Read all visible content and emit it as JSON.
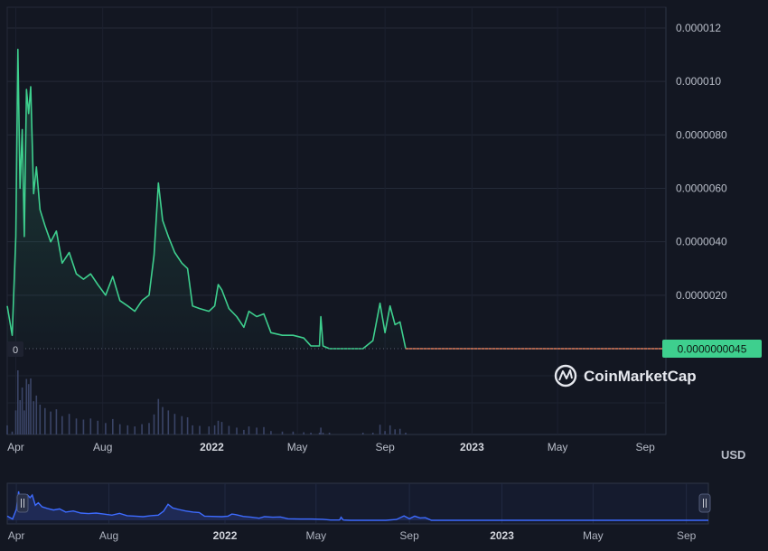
{
  "chart_data": {
    "type": "line",
    "title": "",
    "xlabel": "",
    "ylabel": "",
    "unit": "USD",
    "y_ticks": [
      "0.000012",
      "0.000010",
      "0.0000080",
      "0.0000060",
      "0.0000040",
      "0.0000020"
    ],
    "y_tick_values": [
      1.2e-05,
      1e-05,
      8e-06,
      6e-06,
      4e-06,
      2e-06
    ],
    "zero_label": "0",
    "ylim": [
      0,
      1.18e-05
    ],
    "x_ticks": [
      {
        "label": "Apr",
        "date": "2021-04",
        "bold": false
      },
      {
        "label": "Aug",
        "date": "2021-08",
        "bold": false
      },
      {
        "label": "2022",
        "date": "2022-01",
        "bold": true
      },
      {
        "label": "May",
        "date": "2022-05",
        "bold": false
      },
      {
        "label": "Sep",
        "date": "2022-09",
        "bold": false
      },
      {
        "label": "2023",
        "date": "2023-01",
        "bold": true
      },
      {
        "label": "May",
        "date": "2023-05",
        "bold": false
      },
      {
        "label": "Sep",
        "date": "2023-09",
        "bold": false
      }
    ],
    "nav_ticks": [
      {
        "label": "Apr",
        "bold": false
      },
      {
        "label": "Aug",
        "bold": false
      },
      {
        "label": "2022",
        "bold": true
      },
      {
        "label": "May",
        "bold": false
      },
      {
        "label": "Sep",
        "bold": false
      },
      {
        "label": "2023",
        "bold": true
      },
      {
        "label": "May",
        "bold": false
      },
      {
        "label": "Sep",
        "bold": false
      }
    ],
    "current_price": "0.0000000045",
    "grid": true,
    "colors": {
      "line": "#3ecf8e",
      "flat": "#e07c5a",
      "volume": "#3a4466",
      "nav_line": "#3d6bff",
      "nav_fill": "#1f2a55",
      "background": "#131722",
      "price_badge": "#3ecf8e"
    },
    "series": [
      {
        "values": [
          [
            "2021-03-20",
            1.6e-06
          ],
          [
            "2021-03-27",
            5e-07
          ],
          [
            "2021-04-01",
            4.2e-06
          ],
          [
            "2021-04-04",
            1.12e-05
          ],
          [
            "2021-04-07",
            6e-06
          ],
          [
            "2021-04-10",
            8.2e-06
          ],
          [
            "2021-04-13",
            4.2e-06
          ],
          [
            "2021-04-16",
            9.7e-06
          ],
          [
            "2021-04-19",
            8.8e-06
          ],
          [
            "2021-04-22",
            9.8e-06
          ],
          [
            "2021-04-26",
            5.8e-06
          ],
          [
            "2021-04-30",
            6.8e-06
          ],
          [
            "2021-05-05",
            5.2e-06
          ],
          [
            "2021-05-12",
            4.6e-06
          ],
          [
            "2021-05-20",
            4e-06
          ],
          [
            "2021-05-28",
            4.4e-06
          ],
          [
            "2021-06-05",
            3.2e-06
          ],
          [
            "2021-06-15",
            3.6e-06
          ],
          [
            "2021-06-25",
            2.8e-06
          ],
          [
            "2021-07-05",
            2.6e-06
          ],
          [
            "2021-07-15",
            2.8e-06
          ],
          [
            "2021-07-25",
            2.4e-06
          ],
          [
            "2021-08-05",
            2e-06
          ],
          [
            "2021-08-15",
            2.7e-06
          ],
          [
            "2021-08-25",
            1.8e-06
          ],
          [
            "2021-09-05",
            1.6e-06
          ],
          [
            "2021-09-15",
            1.4e-06
          ],
          [
            "2021-09-25",
            1.8e-06
          ],
          [
            "2021-10-05",
            2e-06
          ],
          [
            "2021-10-12",
            3.5e-06
          ],
          [
            "2021-10-18",
            6.2e-06
          ],
          [
            "2021-10-24",
            4.8e-06
          ],
          [
            "2021-11-01",
            4.2e-06
          ],
          [
            "2021-11-10",
            3.6e-06
          ],
          [
            "2021-11-20",
            3.2e-06
          ],
          [
            "2021-11-28",
            3e-06
          ],
          [
            "2021-12-05",
            1.6e-06
          ],
          [
            "2021-12-15",
            1.5e-06
          ],
          [
            "2021-12-28",
            1.4e-06
          ],
          [
            "2022-01-05",
            1.6e-06
          ],
          [
            "2022-01-10",
            2.4e-06
          ],
          [
            "2022-01-15",
            2.2e-06
          ],
          [
            "2022-01-25",
            1.5e-06
          ],
          [
            "2022-02-05",
            1.2e-06
          ],
          [
            "2022-02-15",
            8e-07
          ],
          [
            "2022-02-22",
            1.4e-06
          ],
          [
            "2022-03-05",
            1.2e-06
          ],
          [
            "2022-03-15",
            1.3e-06
          ],
          [
            "2022-03-25",
            6e-07
          ],
          [
            "2022-04-10",
            5e-07
          ],
          [
            "2022-04-25",
            5e-07
          ],
          [
            "2022-05-10",
            4e-07
          ],
          [
            "2022-05-20",
            1e-07
          ],
          [
            "2022-06-01",
            1e-07
          ],
          [
            "2022-06-03",
            1.2e-06
          ],
          [
            "2022-06-06",
            1e-07
          ],
          [
            "2022-06-15",
            0.0
          ],
          [
            "2022-08-01",
            0.0
          ],
          [
            "2022-08-15",
            3e-07
          ],
          [
            "2022-08-25",
            1.7e-06
          ],
          [
            "2022-09-01",
            6e-07
          ],
          [
            "2022-09-08",
            1.6e-06
          ],
          [
            "2022-09-15",
            9e-07
          ],
          [
            "2022-09-22",
            1e-06
          ],
          [
            "2022-09-30",
            0.0
          ],
          [
            "2023-09-30",
            0.0
          ]
        ]
      }
    ]
  },
  "legend": {
    "label": "CoinMarketCap"
  }
}
